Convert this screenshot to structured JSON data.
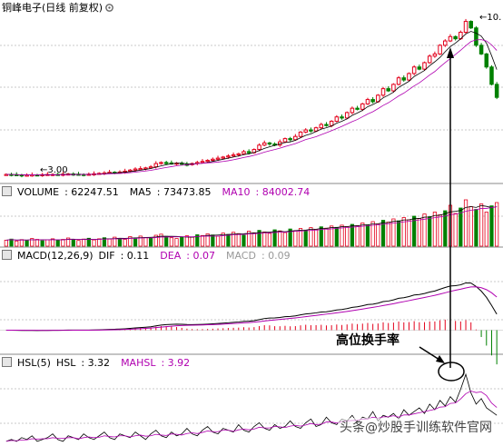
{
  "title": "铜峰电子(日线 前复权)",
  "annotation": "高位换手率",
  "watermark": "头条@炒股手训练软件官网",
  "colors": {
    "up": "#e3001b",
    "down": "#008000",
    "ma5": "#000000",
    "ma10": "#b000b0",
    "dif": "#000000",
    "dea": "#b000b0"
  },
  "chart_data": [
    {
      "type": "candlestick",
      "panel": "price",
      "title": "铜峰电子(日线 前复权)",
      "annotations": [
        {
          "text": "3.00",
          "kind": "low"
        },
        {
          "text": "10.",
          "kind": "high"
        }
      ],
      "ylim": [
        2.8,
        10.5
      ],
      "closes": [
        3.05,
        3.04,
        3.03,
        3.0,
        3.02,
        3.03,
        3.02,
        3.04,
        3.05,
        3.05,
        3.04,
        3.06,
        3.07,
        3.06,
        3.05,
        3.04,
        3.06,
        3.08,
        3.1,
        3.12,
        3.15,
        3.14,
        3.16,
        3.2,
        3.25,
        3.3,
        3.32,
        3.35,
        3.4,
        3.55,
        3.6,
        3.58,
        3.55,
        3.57,
        3.52,
        3.5,
        3.55,
        3.6,
        3.65,
        3.7,
        3.75,
        3.8,
        3.85,
        3.9,
        3.95,
        4.0,
        4.1,
        4.05,
        4.2,
        4.4,
        4.5,
        4.45,
        4.4,
        4.55,
        4.7,
        4.65,
        4.8,
        5.0,
        5.1,
        5.05,
        5.2,
        5.35,
        5.3,
        5.5,
        5.7,
        5.65,
        5.9,
        6.1,
        6.05,
        6.3,
        6.5,
        6.4,
        6.7,
        7.0,
        6.9,
        7.2,
        7.5,
        7.4,
        7.7,
        8.0,
        7.9,
        8.2,
        8.5,
        8.6,
        9.0,
        9.2,
        9.4,
        9.3,
        9.6,
        10.1,
        9.8,
        9.0,
        8.6,
        8.0,
        7.2,
        6.6
      ],
      "direction": "mostly up"
    },
    {
      "type": "bar",
      "panel": "volume",
      "title": "VOLUME",
      "series": [
        {
          "name": "VOLUME",
          "value": "62247.51"
        },
        {
          "name": "MA5",
          "value": "73473.85"
        },
        {
          "name": "MA10",
          "value": "84002.74"
        }
      ],
      "values": [
        22,
        26,
        19,
        24,
        21,
        28,
        25,
        20,
        23,
        27,
        22,
        25,
        30,
        24,
        21,
        26,
        29,
        23,
        27,
        31,
        26,
        33,
        28,
        25,
        35,
        30,
        37,
        32,
        29,
        40,
        44,
        36,
        31,
        28,
        34,
        38,
        33,
        42,
        39,
        45,
        41,
        37,
        48,
        43,
        51,
        46,
        40,
        55,
        49,
        58,
        52,
        47,
        60,
        56,
        50,
        63,
        57,
        65,
        59,
        68,
        62,
        71,
        66,
        74,
        69,
        77,
        72,
        80,
        75,
        85,
        78,
        90,
        82,
        95,
        88,
        100,
        93,
        105,
        97,
        110,
        102,
        118,
        108,
        125,
        115,
        130,
        150,
        120,
        140,
        170,
        145,
        135,
        155,
        125,
        148,
        160
      ]
    },
    {
      "type": "line",
      "panel": "macd",
      "title": "MACD(12,26,9)",
      "series": [
        {
          "name": "DIF",
          "value": "0.11"
        },
        {
          "name": "DEA",
          "value": "0.07"
        },
        {
          "name": "MACD",
          "value": "0.09"
        }
      ],
      "ylim": [
        -0.5,
        1.6
      ]
    },
    {
      "type": "line",
      "panel": "hsl",
      "title": "HSL(5)",
      "series": [
        {
          "name": "HSL",
          "value": "3.32"
        },
        {
          "name": "MAHSL",
          "value": "3.92"
        }
      ],
      "values": [
        2,
        3,
        2,
        4,
        3,
        5,
        2,
        3,
        4,
        6,
        3,
        2,
        5,
        4,
        3,
        6,
        4,
        3,
        5,
        7,
        4,
        3,
        6,
        5,
        4,
        7,
        5,
        3,
        6,
        8,
        5,
        4,
        7,
        5,
        6,
        9,
        6,
        5,
        8,
        10,
        7,
        6,
        9,
        8,
        7,
        11,
        8,
        7,
        10,
        12,
        9,
        8,
        11,
        9,
        10,
        13,
        10,
        9,
        12,
        14,
        10,
        11,
        15,
        12,
        11,
        14,
        13,
        16,
        12,
        15,
        14,
        18,
        13,
        16,
        15,
        17,
        14,
        19,
        16,
        18,
        20,
        17,
        22,
        19,
        24,
        21,
        26,
        23,
        30,
        38,
        28,
        22,
        25,
        20,
        18,
        16
      ]
    }
  ]
}
